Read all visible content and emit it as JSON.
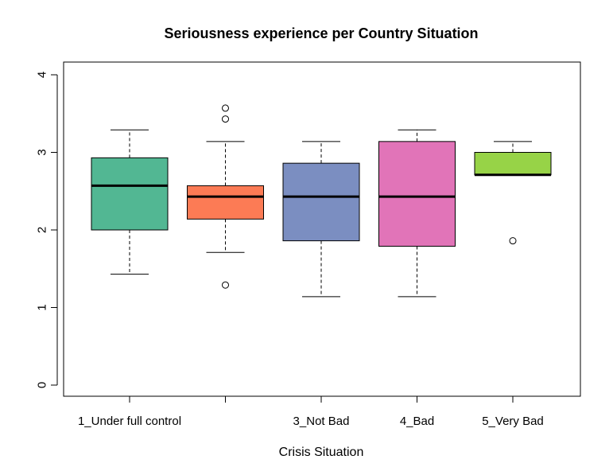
{
  "chart_data": {
    "type": "boxplot",
    "title": "Seriousness experience per Country Situation",
    "xlabel": "Crisis Situation",
    "ylabel": "",
    "ylim": [
      0,
      4
    ],
    "yticks": [
      "0",
      "1",
      "2",
      "3",
      "4"
    ],
    "grid": false,
    "categories": [
      "1_Under full control",
      "",
      "3_Not Bad",
      "4_Bad",
      "5_Very Bad"
    ],
    "boxes": [
      {
        "color": "#52B793",
        "whisker_low": 1.43,
        "q1": 2.0,
        "median": 2.57,
        "q3": 2.93,
        "whisker_high": 3.29,
        "outliers": []
      },
      {
        "color": "#FC7B55",
        "whisker_low": 1.71,
        "q1": 2.14,
        "median": 2.43,
        "q3": 2.57,
        "whisker_high": 3.14,
        "outliers": [
          3.57,
          3.43,
          1.29
        ]
      },
      {
        "color": "#7B8EC1",
        "whisker_low": 1.14,
        "q1": 1.86,
        "median": 2.43,
        "q3": 2.86,
        "whisker_high": 3.14,
        "outliers": []
      },
      {
        "color": "#E174B8",
        "whisker_low": 1.14,
        "q1": 1.79,
        "median": 2.43,
        "q3": 3.14,
        "whisker_high": 3.29,
        "outliers": []
      },
      {
        "color": "#97D347",
        "whisker_low": 2.71,
        "q1": 2.71,
        "median": 2.71,
        "q3": 3.0,
        "whisker_high": 3.14,
        "outliers": [
          1.86
        ]
      }
    ]
  }
}
